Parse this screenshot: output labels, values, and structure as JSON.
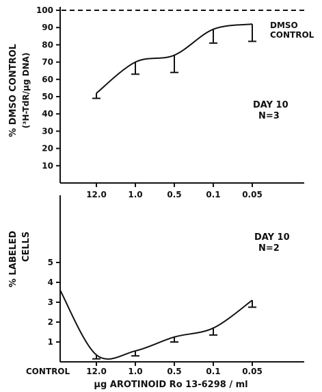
{
  "chart_data": [
    {
      "type": "line",
      "title": "",
      "ylabel": "% DMSO CONTROL",
      "ylabel2": "(³H-TdR/µg DNA)",
      "yticks": [
        10,
        20,
        30,
        40,
        50,
        60,
        70,
        80,
        90,
        100
      ],
      "ylim": [
        0,
        100
      ],
      "categories": [
        "12.0",
        "1.0",
        "0.5",
        "0.1",
        "0.05"
      ],
      "category_labels": [
        "12.0",
        "1.0",
        "0.5",
        "0.1",
        "0.05"
      ],
      "values": [
        52,
        70,
        74,
        89,
        92
      ],
      "error_low": [
        49,
        63,
        64,
        81,
        82
      ],
      "reference_line": {
        "value": 100,
        "label_lines": [
          "DMSO",
          "CONTROL"
        ]
      },
      "annotation_lines": [
        "DAY 10",
        "N=3"
      ]
    },
    {
      "type": "line",
      "title": "",
      "ylabel": "% LABELED",
      "ylabel2": "CELLS",
      "yticks": [
        1,
        2,
        3,
        4,
        5
      ],
      "ylim": [
        0,
        5
      ],
      "categories": [
        "CONTROL",
        "12.0",
        "1.0",
        "0.5",
        "0.1",
        "0.05"
      ],
      "values": [
        3.6,
        0.35,
        0.55,
        1.25,
        1.7,
        3.1
      ],
      "error_low": [
        3.6,
        0.15,
        0.3,
        1.0,
        1.35,
        2.75
      ],
      "annotation_lines": [
        "DAY 10",
        "N=2"
      ],
      "xlabel": "µg AROTINOID Ro 13-6298 / ml"
    }
  ]
}
